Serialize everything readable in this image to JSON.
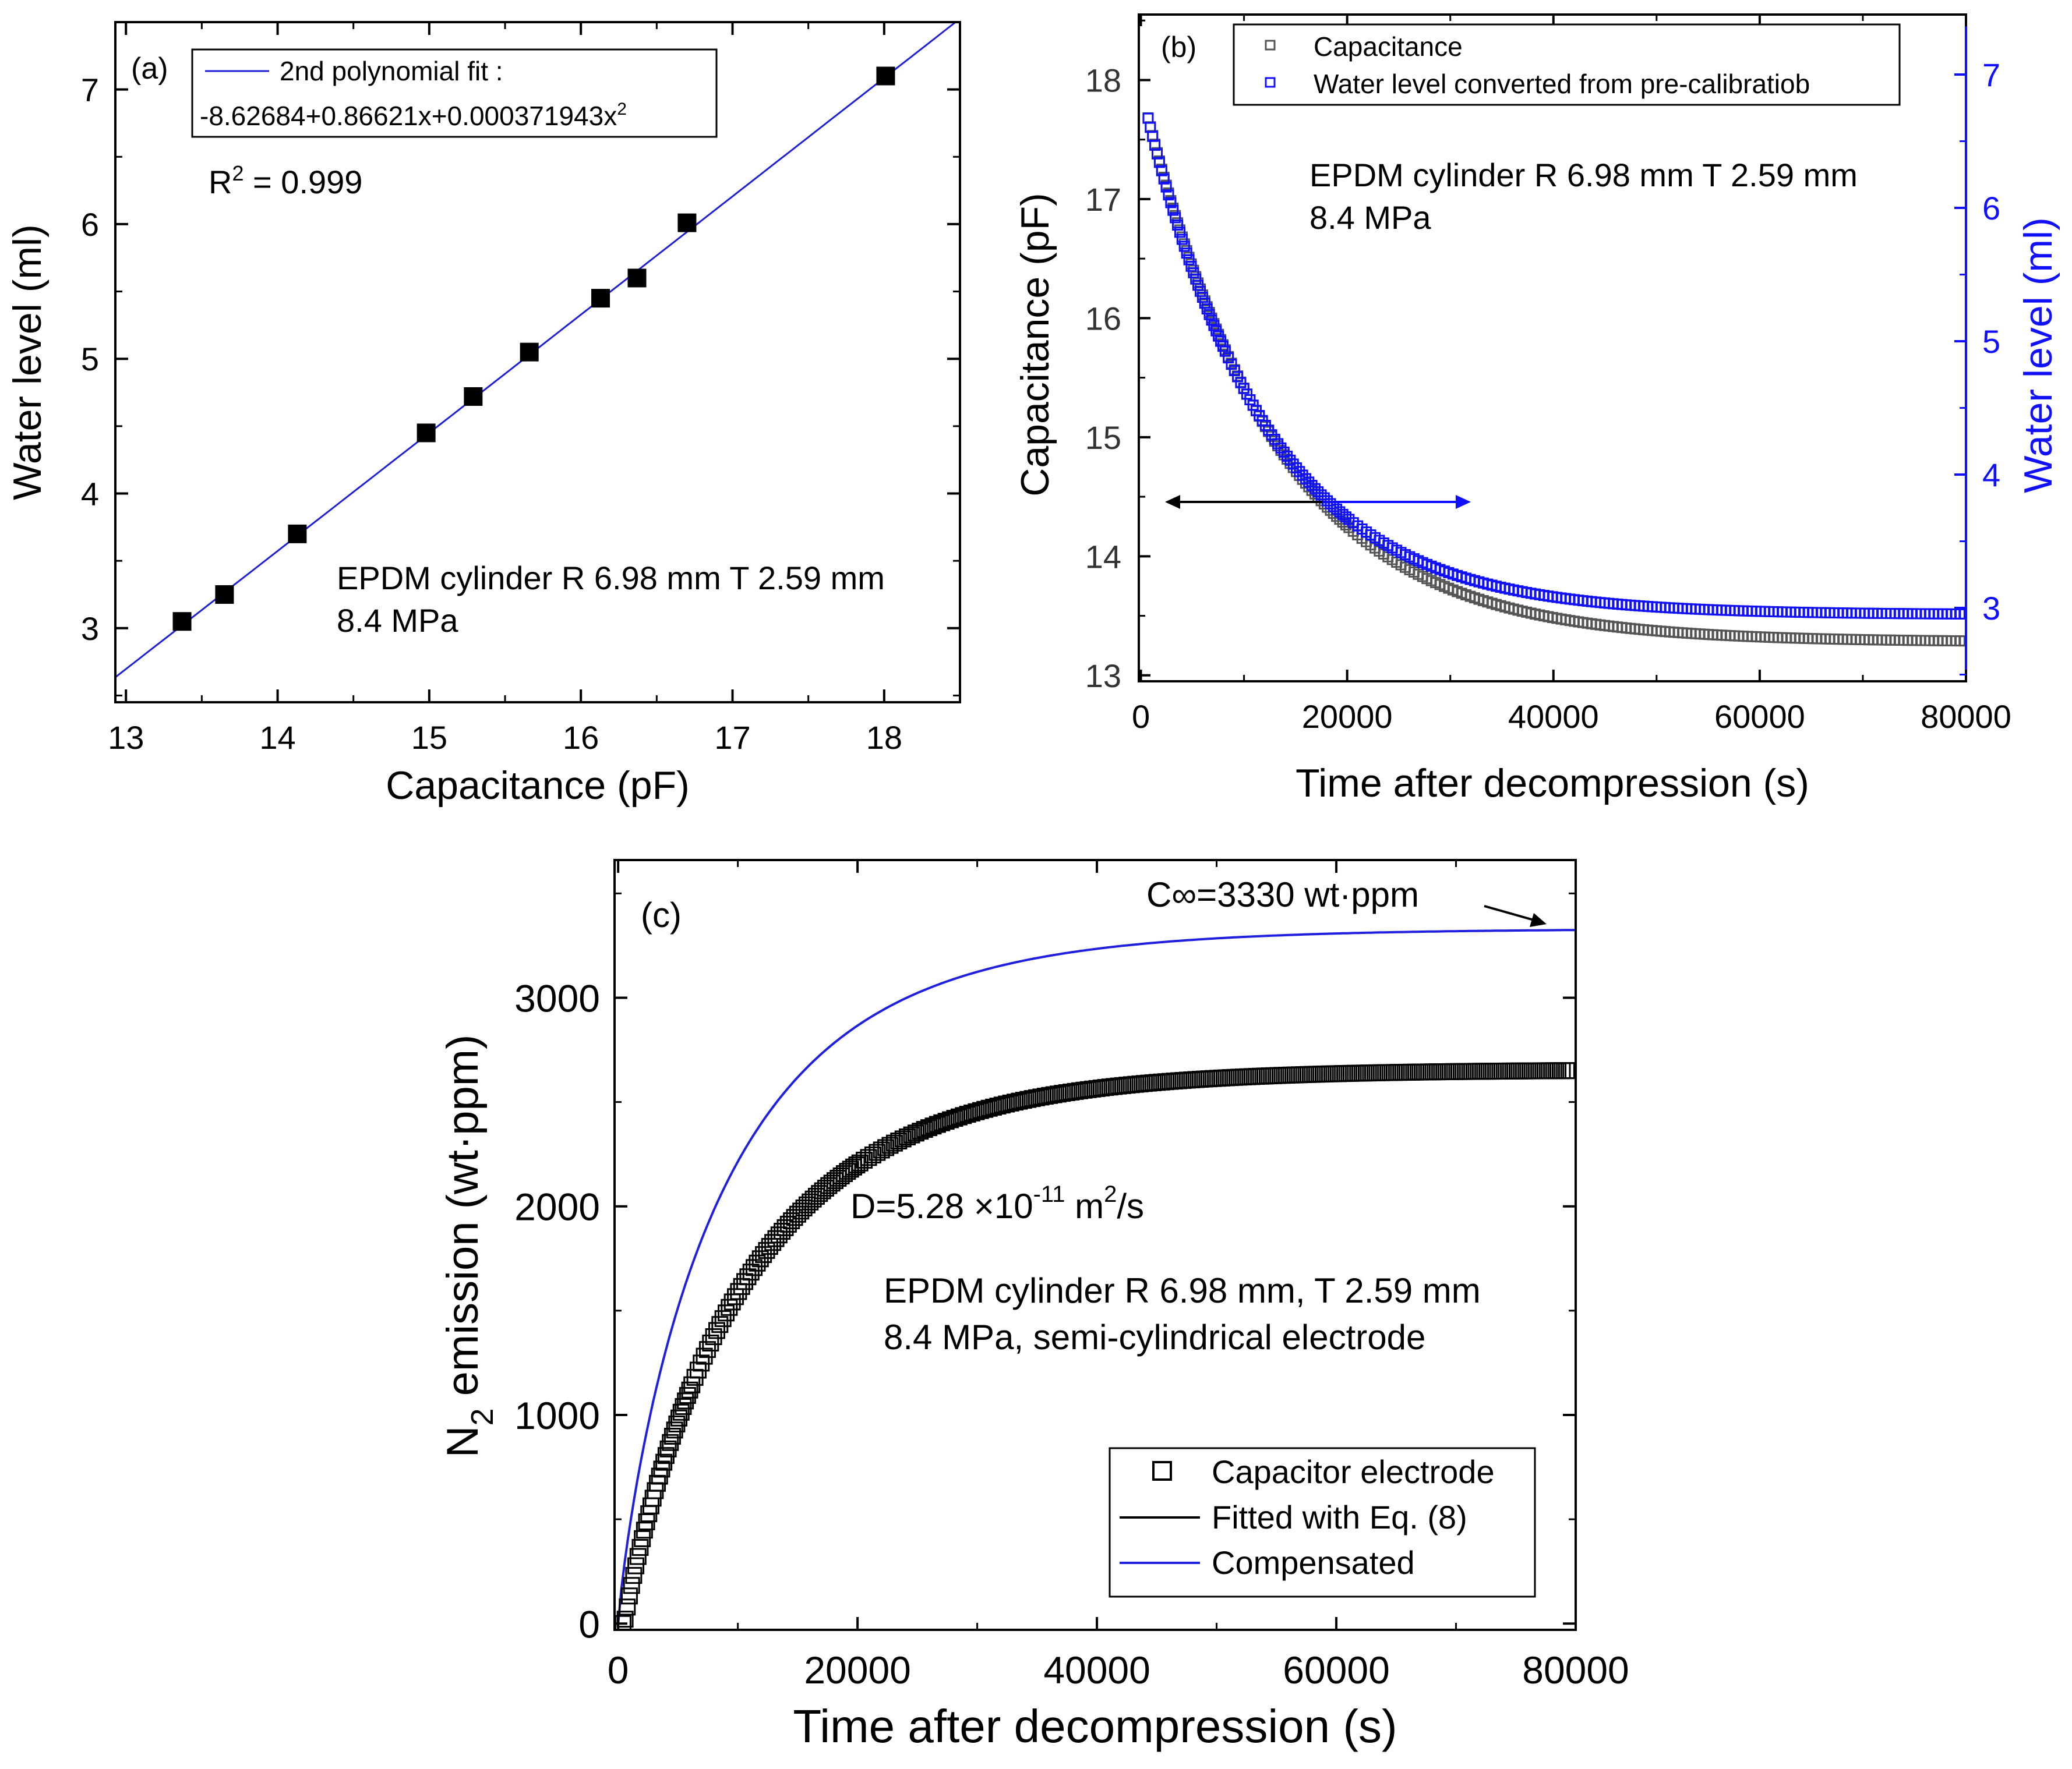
{
  "chart_data": [
    {
      "panel": "(a)",
      "type": "scatter",
      "xlabel": "Capacitance (pF)",
      "ylabel": "Water level (ml)",
      "xlim": [
        12.93,
        18.5
      ],
      "ylim": [
        2.45,
        7.5
      ],
      "xticks": [
        13,
        14,
        15,
        16,
        17,
        18
      ],
      "yticks": [
        3,
        4,
        5,
        6,
        7
      ],
      "legend": {
        "label": "2nd polynomial fit :",
        "equation": "-8.62684+0.86621x+0.000371943x",
        "equation_sup": "2",
        "position": "top-left"
      },
      "annotations": {
        "r2_prefix": "R",
        "r2_sup": "2",
        "r2_value": " = 0.999",
        "sample": "EPDM cylinder R 6.98 mm T 2.59 mm",
        "pressure": "8.4 MPa"
      },
      "series": [
        {
          "name": "data",
          "x": [
            13.37,
            13.65,
            14.13,
            14.98,
            15.29,
            15.66,
            16.13,
            16.37,
            16.7,
            18.01
          ],
          "y": [
            3.05,
            3.25,
            3.7,
            4.45,
            4.72,
            5.05,
            5.45,
            5.6,
            6.01,
            7.1
          ]
        },
        {
          "name": "2nd polynomial fit",
          "coeffs": [
            -8.62684,
            0.86621,
            0.000371943
          ],
          "color": "#1f1fd6"
        }
      ]
    },
    {
      "panel": "(b)",
      "type": "scatter",
      "xlabel": "Time after decompression (s)",
      "ylabel": "Capacitance (pF)",
      "y2label": "Water level (ml)",
      "xlim": [
        -200,
        80000
      ],
      "ylim": [
        12.95,
        18.55
      ],
      "y2lim": [
        2.45,
        7.45
      ],
      "xticks": [
        0,
        20000,
        40000,
        60000,
        80000
      ],
      "yticks": [
        13,
        14,
        15,
        16,
        17,
        18
      ],
      "y2ticks": [
        3,
        4,
        5,
        6,
        7
      ],
      "legend": {
        "items": [
          "Capacitance",
          "Water level converted from pre-calibratiob"
        ],
        "position": "top-right"
      },
      "annotations": {
        "sample": "EPDM cylinder R 6.98 mm T 2.59 mm",
        "pressure": "8.4 MPa"
      },
      "series": [
        {
          "name": "Capacitance",
          "axis": "left",
          "color": "#555555",
          "model": {
            "C_inf": 13.28,
            "A": 4.65,
            "tau": 12800
          }
        },
        {
          "name": "Water level converted from pre-calibratiob",
          "axis": "right",
          "color": "#1010ff",
          "model": {
            "W_inf": 2.95,
            "A": 3.95,
            "tau": 11800
          }
        }
      ]
    },
    {
      "panel": "(c)",
      "type": "scatter",
      "xlabel": "Time after decompression (s)",
      "ylabel_main": "N",
      "ylabel_sub": "2",
      "ylabel_rest": " emission (wt·ppm)",
      "xlim": [
        -300,
        80000
      ],
      "ylim": [
        -30,
        3660
      ],
      "xticks": [
        0,
        20000,
        40000,
        60000,
        80000
      ],
      "yticks": [
        0,
        1000,
        2000,
        3000
      ],
      "legend": {
        "items": [
          "Capacitor electrode",
          "Fitted with Eq. (8)",
          "Compensated"
        ],
        "position": "bottom-right"
      },
      "annotations": {
        "cinf": "C∞=3330 wt·ppm",
        "diff_prefix": "D=5.28 ×10",
        "diff_exp": "-11",
        "diff_unit": " m",
        "diff_unit_sup": "2",
        "diff_suffix": "/s",
        "sample": "EPDM cylinder R 6.98 mm, T 2.59 mm",
        "conditions": "8.4 MPa, semi-cylindrical electrode"
      },
      "series": [
        {
          "name": "Capacitor electrode",
          "color": "#000000",
          "model": {
            "C_inf": 2655,
            "tau": 10500,
            "t0": 1500
          }
        },
        {
          "name": "Fitted with Eq. (8)",
          "color": "#000000"
        },
        {
          "name": "Compensated",
          "color": "#1f1fe0",
          "model": {
            "C_inf": 3330,
            "tau": 9000
          }
        }
      ]
    }
  ]
}
